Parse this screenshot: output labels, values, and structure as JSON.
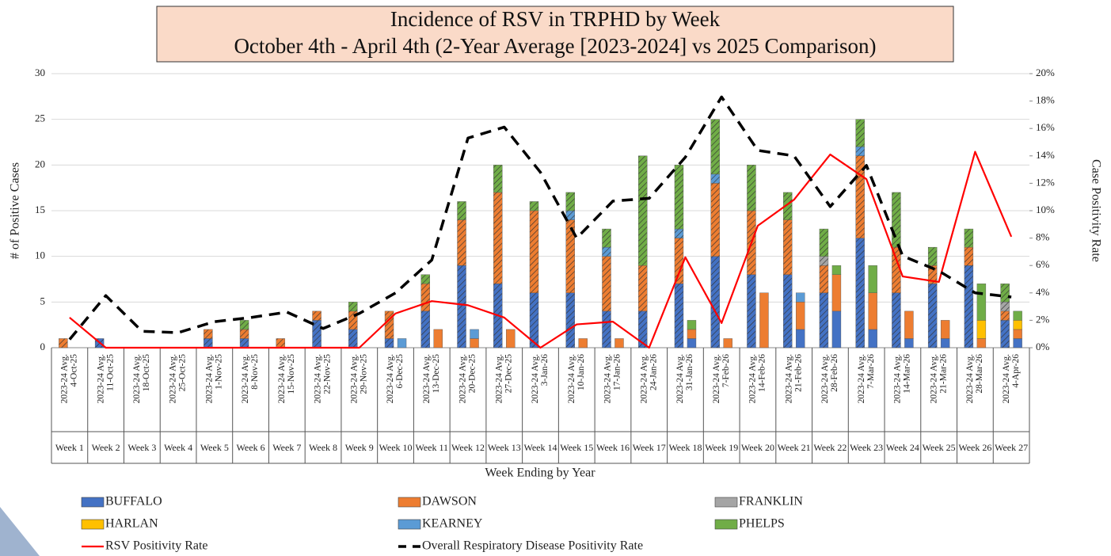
{
  "chart_data": {
    "type": "stacked_bar_line",
    "title": "Incidence of RSV in TRPHD by Week",
    "subtitle": "October 4th - April 4th (2-Year Average [2023-2024] vs 2025 Comparison)",
    "y_label": "# of Positive Cases",
    "y2_label": "Case Positivity Rate",
    "x_label": "Week Ending by Year",
    "avg_label": "2023-24 Avg.",
    "categories": [
      "4-Oct-25",
      "11-Oct-25",
      "18-Oct-25",
      "25-Oct-25",
      "1-Nov-25",
      "8-Nov-25",
      "15-Nov-25",
      "22-Nov-25",
      "29-Nov-25",
      "6-Dec-25",
      "13-Dec-25",
      "20-Dec-25",
      "27-Dec-25",
      "3-Jan-26",
      "10-Jan-26",
      "17-Jan-26",
      "24-Jan-26",
      "31-Jan-26",
      "7-Feb-26",
      "14-Feb-26",
      "21-Feb-26",
      "28-Feb-26",
      "7-Mar-26",
      "14-Mar-26",
      "21-Mar-26",
      "28-Mar-26",
      "4-Apr-26"
    ],
    "weeks": [
      "Week 1",
      "Week 2",
      "Week 3",
      "Week 4",
      "Week 5",
      "Week 6",
      "Week 7",
      "Week 8",
      "Week 9",
      "Week 10",
      "Week 11",
      "Week 12",
      "Week 13",
      "Week 14",
      "Week 15",
      "Week 16",
      "Week 17",
      "Week 18",
      "Week 19",
      "Week 20",
      "Week 21",
      "Week 22",
      "Week 23",
      "Week 24",
      "Week 25",
      "Week 26",
      "Week 27"
    ],
    "ylim": [
      0,
      30
    ],
    "yticks": [
      0,
      5,
      10,
      15,
      20,
      25,
      30
    ],
    "y2lim": [
      0,
      20
    ],
    "y2ticks": [
      {
        "value": 0,
        "label": "0%"
      },
      {
        "value": 2,
        "label": "2%"
      },
      {
        "value": 4,
        "label": "4%"
      },
      {
        "value": 6,
        "label": "6%"
      },
      {
        "value": 8,
        "label": "8%"
      },
      {
        "value": 10,
        "label": "10%"
      },
      {
        "value": 12,
        "label": "12%"
      },
      {
        "value": 14,
        "label": "14%"
      },
      {
        "value": 16,
        "label": "16%"
      },
      {
        "value": 18,
        "label": "18%"
      },
      {
        "value": 20,
        "label": "20%"
      }
    ],
    "grid": true,
    "series": [
      {
        "name": "BUFFALO",
        "color": "#4472c4",
        "avg_values": [
          0,
          1,
          0,
          0,
          1,
          1,
          0,
          3,
          2,
          1,
          4,
          9,
          7,
          6,
          6,
          4,
          4,
          7,
          10,
          8,
          8,
          6,
          12,
          6,
          7,
          9,
          3
        ],
        "values": [
          0,
          0,
          0,
          0,
          0,
          0,
          0,
          0,
          0,
          0,
          0,
          0,
          0,
          0,
          0,
          0,
          0,
          1,
          0,
          0,
          2,
          4,
          2,
          1,
          1,
          0,
          1
        ]
      },
      {
        "name": "DAWSON",
        "color": "#ed7d31",
        "avg_values": [
          1,
          0,
          0,
          0,
          1,
          1,
          1,
          1,
          2,
          3,
          3,
          5,
          10,
          9,
          8,
          6,
          5,
          5,
          8,
          7,
          6,
          3,
          9,
          5,
          2,
          2,
          1
        ],
        "values": [
          0,
          0,
          0,
          0,
          0,
          0,
          0,
          0,
          0,
          0,
          2,
          1,
          2,
          0,
          1,
          1,
          0,
          1,
          1,
          6,
          3,
          4,
          4,
          3,
          2,
          1,
          1
        ]
      },
      {
        "name": "FRANKLIN",
        "color": "#a5a5a5",
        "avg_values": [
          0,
          0,
          0,
          0,
          0,
          0,
          0,
          0,
          0,
          0,
          0,
          0,
          0,
          0,
          0,
          0,
          0,
          0,
          0,
          0,
          0,
          1,
          0,
          0,
          0,
          0,
          1
        ],
        "values": [
          0,
          0,
          0,
          0,
          0,
          0,
          0,
          0,
          0,
          0,
          0,
          0,
          0,
          0,
          0,
          0,
          0,
          0,
          0,
          0,
          0,
          0,
          0,
          0,
          0,
          0,
          0
        ]
      },
      {
        "name": "HARLAN",
        "color": "#ffc000",
        "avg_values": [
          0,
          0,
          0,
          0,
          0,
          0,
          0,
          0,
          0,
          0,
          0,
          0,
          0,
          0,
          0,
          0,
          0,
          0,
          0,
          0,
          0,
          0,
          0,
          0,
          0,
          0,
          0
        ],
        "values": [
          0,
          0,
          0,
          0,
          0,
          0,
          0,
          0,
          0,
          0,
          0,
          0,
          0,
          0,
          0,
          0,
          0,
          0,
          0,
          0,
          0,
          0,
          0,
          0,
          0,
          2,
          1
        ]
      },
      {
        "name": "KEARNEY",
        "color": "#5b9bd5",
        "avg_values": [
          0,
          0,
          0,
          0,
          0,
          0,
          0,
          0,
          0,
          0,
          0,
          0,
          0,
          0,
          1,
          1,
          0,
          1,
          1,
          0,
          0,
          0,
          1,
          0,
          0,
          0,
          0
        ],
        "values": [
          0,
          0,
          0,
          0,
          0,
          0,
          0,
          0,
          0,
          1,
          0,
          1,
          0,
          0,
          0,
          0,
          0,
          0,
          0,
          0,
          1,
          0,
          0,
          0,
          0,
          0,
          0
        ]
      },
      {
        "name": "PHELPS",
        "color": "#70ad47",
        "avg_values": [
          0,
          0,
          0,
          0,
          0,
          1,
          0,
          0,
          1,
          0,
          1,
          2,
          3,
          1,
          2,
          2,
          12,
          7,
          6,
          5,
          3,
          3,
          3,
          6,
          2,
          2,
          2
        ],
        "values": [
          0,
          0,
          0,
          0,
          0,
          0,
          0,
          0,
          0,
          0,
          0,
          0,
          0,
          0,
          0,
          0,
          0,
          1,
          0,
          0,
          0,
          1,
          3,
          0,
          0,
          4,
          1
        ]
      }
    ],
    "lines": [
      {
        "name": "RSV Positivity Rate",
        "color": "#ff0000",
        "axis": "y2",
        "values": [
          2.2,
          0,
          0,
          0,
          0,
          0,
          0,
          0,
          0,
          2.5,
          3.4,
          3.1,
          2.2,
          0,
          1.7,
          1.9,
          0,
          6.6,
          1.8,
          8.9,
          10.8,
          14.1,
          12.3,
          5.2,
          4.8,
          14.3,
          8.1
        ]
      },
      {
        "name": "Overall Respiratory Disease Positivity Rate",
        "color": "#000000",
        "axis": "y2",
        "dashed": true,
        "values": [
          0.6,
          3.8,
          1.2,
          1.1,
          1.9,
          2.2,
          2.6,
          1.4,
          2.5,
          4.0,
          6.4,
          15.3,
          16.1,
          12.8,
          8.0,
          10.7,
          10.9,
          13.9,
          18.3,
          14.4,
          14.0,
          10.3,
          13.3,
          6.7,
          5.6,
          4.0,
          3.7
        ]
      }
    ]
  }
}
